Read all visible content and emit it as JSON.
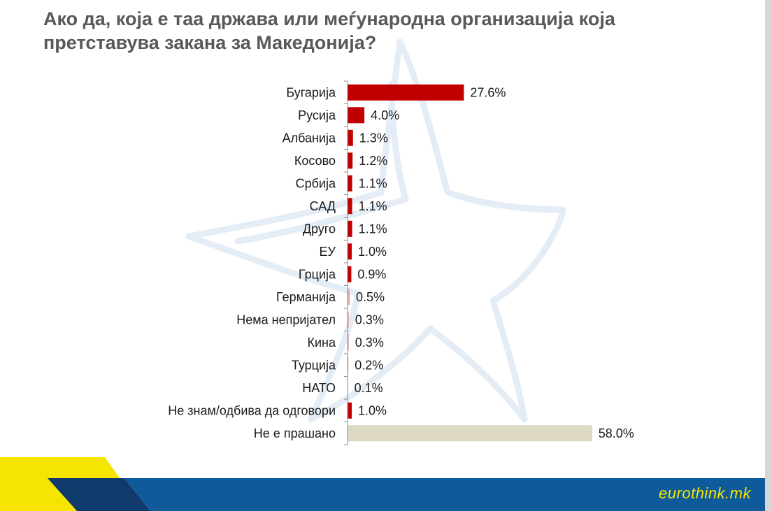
{
  "slide": {
    "title_line1": "Ако да, која е таа држава или меѓународна организација која",
    "title_line2": "претставува закана за Македонија?",
    "brand": "eurothink.mk"
  },
  "colors": {
    "bar_primary": "#c00000",
    "bar_light": "#e8a8a8",
    "bar_not_asked": "#ddd9c3",
    "footer_blue": "#0f5a9b",
    "footer_yellow": "#f5e500",
    "watermark": "#e4edf6"
  },
  "chart_data": {
    "type": "bar",
    "orientation": "horizontal",
    "categories": [
      "Бугарија",
      "Русија",
      "Албанија",
      "Косово",
      "Србија",
      "САД",
      "Друго",
      "ЕУ",
      "Грција",
      "Германија",
      "Нема непријател",
      "Кина",
      "Турција",
      "НАТО",
      "Не знам/одбива да одговори",
      "Не е прашано"
    ],
    "values": [
      27.6,
      4.0,
      1.3,
      1.2,
      1.1,
      1.1,
      1.1,
      1.0,
      0.9,
      0.5,
      0.3,
      0.3,
      0.2,
      0.1,
      1.0,
      58.0
    ],
    "value_labels": [
      "27.6%",
      "4.0%",
      "1.3%",
      "1.2%",
      "1.1%",
      "1.1%",
      "1.1%",
      "1.0%",
      "0.9%",
      "0.5%",
      "0.3%",
      "0.3%",
      "0.2%",
      "0.1%",
      "1.0%",
      "58.0%"
    ],
    "xlim": [
      0,
      60
    ],
    "grid": false,
    "legend": "none"
  }
}
